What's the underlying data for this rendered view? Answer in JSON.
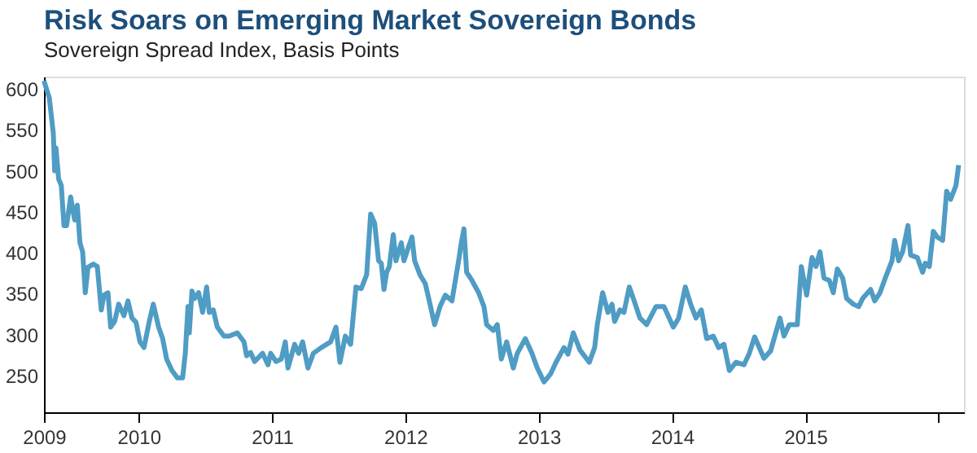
{
  "chart_data": {
    "type": "line",
    "title": "Risk Soars on Emerging Market Sovereign Bonds",
    "subtitle": "Sovereign Spread Index, Basis Points",
    "x": [
      2009.29,
      2009.33,
      2009.36,
      2009.37,
      2009.38,
      2009.4,
      2009.42,
      2009.44,
      2009.46,
      2009.49,
      2009.52,
      2009.54,
      2009.56,
      2009.58,
      2009.6,
      2009.62,
      2009.66,
      2009.69,
      2009.72,
      2009.74,
      2009.77,
      2009.79,
      2009.82,
      2009.85,
      2009.89,
      2009.92,
      2009.95,
      2009.98,
      2010.01,
      2010.04,
      2010.08,
      2010.11,
      2010.15,
      2010.18,
      2010.21,
      2010.25,
      2010.29,
      2010.33,
      2010.35,
      2010.37,
      2010.38,
      2010.4,
      2010.42,
      2010.45,
      2010.48,
      2010.51,
      2010.53,
      2010.56,
      2010.59,
      2010.64,
      2010.68,
      2010.74,
      2010.79,
      2010.81,
      2010.84,
      2010.87,
      2010.93,
      2010.97,
      2010.99,
      2011.03,
      2011.07,
      2011.1,
      2011.12,
      2011.17,
      2011.2,
      2011.23,
      2011.27,
      2011.31,
      2011.37,
      2011.44,
      2011.48,
      2011.51,
      2011.55,
      2011.59,
      2011.63,
      2011.67,
      2011.71,
      2011.74,
      2011.77,
      2011.8,
      2011.82,
      2011.84,
      2011.86,
      2011.88,
      2011.91,
      2011.93,
      2011.97,
      2011.99,
      2012.02,
      2012.05,
      2012.07,
      2012.11,
      2012.15,
      2012.18,
      2012.22,
      2012.26,
      2012.3,
      2012.35,
      2012.4,
      2012.42,
      2012.44,
      2012.46,
      2012.5,
      2012.55,
      2012.59,
      2012.61,
      2012.66,
      2012.69,
      2012.72,
      2012.76,
      2012.81,
      2012.84,
      2012.9,
      2012.95,
      2012.99,
      2013.04,
      2013.09,
      2013.13,
      2013.19,
      2013.22,
      2013.26,
      2013.31,
      2013.38,
      2013.42,
      2013.44,
      2013.48,
      2013.52,
      2013.55,
      2013.57,
      2013.61,
      2013.64,
      2013.68,
      2013.71,
      2013.76,
      2013.81,
      2013.88,
      2013.94,
      2014.01,
      2014.05,
      2014.1,
      2014.14,
      2014.18,
      2014.22,
      2014.26,
      2014.31,
      2014.35,
      2014.39,
      2014.43,
      2014.48,
      2014.54,
      2014.58,
      2014.62,
      2014.69,
      2014.74,
      2014.81,
      2014.84,
      2014.88,
      2014.94,
      2014.97,
      2015.01,
      2015.05,
      2015.08,
      2015.11,
      2015.14,
      2015.18,
      2015.21,
      2015.24,
      2015.28,
      2015.31,
      2015.36,
      2015.4,
      2015.43,
      2015.49,
      2015.52,
      2015.56,
      2015.6,
      2015.65,
      2015.67,
      2015.7,
      2015.73,
      2015.77,
      2015.79,
      2015.84,
      2015.88,
      2015.9,
      2015.93,
      2015.96,
      2015.99,
      2016.03,
      2016.06,
      2016.09,
      2016.13,
      2016.15
    ],
    "series": [
      {
        "color": "#4f9cc4",
        "values": [
          610,
          589,
          546,
          500,
          528,
          490,
          482,
          433,
          433,
          468,
          440,
          458,
          412,
          401,
          351,
          382,
          386,
          383,
          330,
          348,
          351,
          309,
          316,
          337,
          323,
          341,
          320,
          315,
          291,
          284,
          316,
          337,
          309,
          295,
          270,
          256,
          247,
          247,
          277,
          334,
          302,
          353,
          344,
          351,
          327,
          358,
          327,
          330,
          309,
          298,
          298,
          302,
          291,
          274,
          278,
          267,
          277,
          263,
          277,
          267,
          270,
          291,
          259,
          288,
          277,
          291,
          259,
          277,
          284,
          291,
          309,
          266,
          298,
          288,
          358,
          356,
          373,
          447,
          436,
          390,
          387,
          355,
          376,
          383,
          422,
          390,
          412,
          390,
          405,
          419,
          390,
          373,
          362,
          341,
          312,
          334,
          348,
          341,
          390,
          412,
          429,
          376,
          366,
          351,
          334,
          312,
          305,
          312,
          270,
          291,
          259,
          277,
          295,
          277,
          259,
          242,
          252,
          266,
          284,
          276,
          302,
          281,
          266,
          284,
          312,
          351,
          327,
          337,
          316,
          330,
          327,
          358,
          344,
          320,
          312,
          334,
          334,
          309,
          320,
          358,
          337,
          320,
          330,
          295,
          298,
          284,
          288,
          256,
          266,
          263,
          277,
          297,
          271,
          280,
          320,
          298,
          312,
          312,
          383,
          348,
          394,
          383,
          401,
          369,
          366,
          351,
          380,
          369,
          344,
          337,
          334,
          344,
          355,
          341,
          351,
          369,
          390,
          415,
          390,
          401,
          433,
          397,
          394,
          376,
          387,
          383,
          426,
          419,
          415,
          475,
          465,
          482,
          507
        ]
      }
    ],
    "xlim": [
      2009.29,
      2016.19
    ],
    "xticks": [
      {
        "value": 2009.29,
        "label": "2009"
      },
      2010,
      2011,
      2012,
      2013,
      2014,
      2015,
      {
        "value": 2016,
        "label": null
      }
    ],
    "ylim": [
      205,
      615
    ],
    "yticks": [
      250,
      300,
      350,
      400,
      450,
      500,
      550,
      600
    ],
    "grid": false,
    "legend": false,
    "marker": "none",
    "line_style": "solid"
  }
}
